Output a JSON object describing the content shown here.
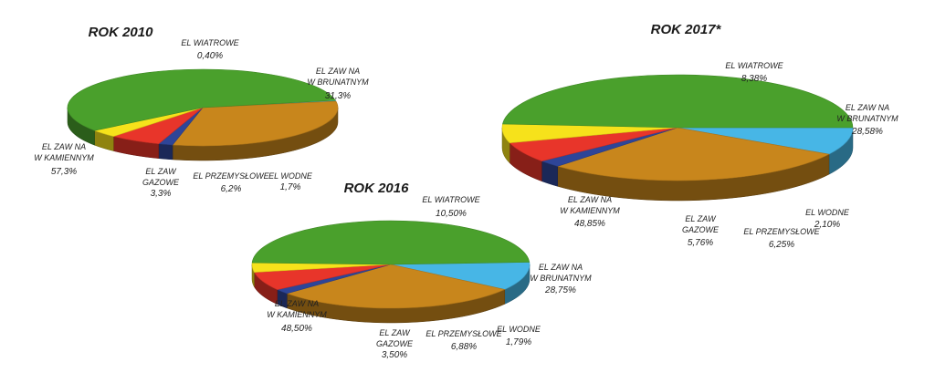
{
  "colors": {
    "EL WIATROWE": "#47b6e6",
    "EL ZAW NA W BRUNATNYM": "#c8861c",
    "EL WODNE": "#2e4598",
    "EL PRZEMYSŁOWE": "#e8352a",
    "EL ZAW GAZOWE": "#f6e21b",
    "EL ZAW NA W KAMIENNYM": "#4aa02c"
  },
  "chart_data": [
    {
      "type": "pie",
      "title": "ROK 2010",
      "slices": [
        {
          "key": "wiatr",
          "label": [
            "EL WIATROWE"
          ],
          "value_text": "0,40%",
          "value": 0.4,
          "color_key": "EL WIATROWE"
        },
        {
          "key": "brun",
          "label": [
            "EL ZAW NA",
            "W BRUNATNYM"
          ],
          "value_text": "31,3%",
          "value": 31.3,
          "color_key": "EL ZAW NA W BRUNATNYM"
        },
        {
          "key": "wodne",
          "label": [
            "EL WODNE"
          ],
          "value_text": "1,7%",
          "value": 1.7,
          "color_key": "EL WODNE"
        },
        {
          "key": "przem",
          "label": [
            "EL PRZEMYSŁOWE"
          ],
          "value_text": "6,2%",
          "value": 6.2,
          "color_key": "EL PRZEMYSŁOWE"
        },
        {
          "key": "gaz",
          "label": [
            "EL ZAW",
            "GAZOWE"
          ],
          "value_text": "3,3%",
          "value": 3.3,
          "color_key": "EL ZAW GAZOWE"
        },
        {
          "key": "kam",
          "label": [
            "EL ZAW NA",
            "W KAMIENNYM"
          ],
          "value_text": "57,3%",
          "value": 57.3,
          "color_key": "EL ZAW NA W KAMIENNYM"
        }
      ]
    },
    {
      "type": "pie",
      "title": "ROK 2016",
      "slices": [
        {
          "key": "wiatr",
          "label": [
            "EL WIATROWE"
          ],
          "value_text": "10,50%",
          "value": 10.5,
          "color_key": "EL WIATROWE"
        },
        {
          "key": "brun",
          "label": [
            "EL ZAW NA",
            "W BRUNATNYM"
          ],
          "value_text": "28,75%",
          "value": 28.75,
          "color_key": "EL ZAW NA W BRUNATNYM"
        },
        {
          "key": "wodne",
          "label": [
            "EL WODNE"
          ],
          "value_text": "1,79%",
          "value": 1.79,
          "color_key": "EL WODNE"
        },
        {
          "key": "przem",
          "label": [
            "EL PRZEMYSŁOWE"
          ],
          "value_text": "6,88%",
          "value": 6.88,
          "color_key": "EL PRZEMYSŁOWE"
        },
        {
          "key": "gaz",
          "label": [
            "EL ZAW",
            "GAZOWE"
          ],
          "value_text": "3,50%",
          "value": 3.5,
          "color_key": "EL ZAW GAZOWE"
        },
        {
          "key": "kam",
          "label": [
            "EL ZAW NA",
            "W KAMIENNYM"
          ],
          "value_text": "48,50%",
          "value": 48.5,
          "color_key": "EL ZAW NA W KAMIENNYM"
        }
      ]
    },
    {
      "type": "pie",
      "title": "ROK 2017*",
      "slices": [
        {
          "key": "wiatr",
          "label": [
            "EL WIATROWE"
          ],
          "value_text": "8,38%",
          "value": 8.38,
          "color_key": "EL WIATROWE"
        },
        {
          "key": "brun",
          "label": [
            "EL ZAW NA",
            "W BRUNATNYM"
          ],
          "value_text": "28,58%",
          "value": 28.58,
          "color_key": "EL ZAW NA W BRUNATNYM"
        },
        {
          "key": "wodne",
          "label": [
            "EL WODNE"
          ],
          "value_text": "2,10%",
          "value": 2.1,
          "color_key": "EL WODNE"
        },
        {
          "key": "przem",
          "label": [
            "EL PRZEMYSŁOWE"
          ],
          "value_text": "6,25%",
          "value": 6.25,
          "color_key": "EL PRZEMYSŁOWE"
        },
        {
          "key": "gaz",
          "label": [
            "EL ZAW",
            "GAZOWE"
          ],
          "value_text": "5,76%",
          "value": 5.76,
          "color_key": "EL ZAW GAZOWE"
        },
        {
          "key": "kam",
          "label": [
            "EL ZAW NA",
            "W KAMIENNYM"
          ],
          "value_text": "48,85%",
          "value": 48.85,
          "color_key": "EL ZAW NA W KAMIENNYM"
        }
      ]
    }
  ]
}
